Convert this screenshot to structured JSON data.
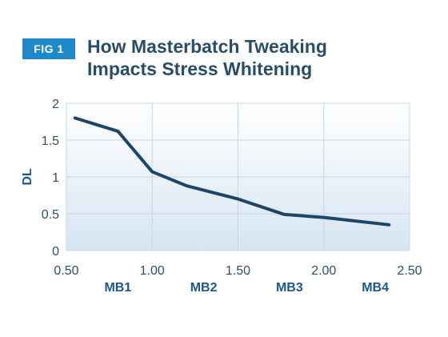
{
  "badge": "FIG 1",
  "title_line1": "How Masterbatch Tweaking",
  "title_line2": "Impacts Stress Whitening",
  "colors": {
    "badge_bg": "#1e88c8",
    "line": "#1f4566",
    "plot_bg_top": "#ffffff",
    "plot_bg_bottom": "#d6e5f3",
    "grid": "#c6d6e6",
    "label_blue": "#1f5684"
  },
  "chart_data": {
    "type": "line",
    "title": "How Masterbatch Tweaking Impacts Stress Whitening",
    "xlabel": "",
    "ylabel": "DL",
    "xlim": [
      0.5,
      2.5
    ],
    "ylim": [
      0,
      2
    ],
    "x_ticks": [
      "0.50",
      "1.00",
      "1.50",
      "2.00",
      "2.50"
    ],
    "y_ticks": [
      "0",
      "0.5",
      "1",
      "1.5",
      "2"
    ],
    "grid": true,
    "series": [
      {
        "x": [
          0.55,
          0.8,
          1.0,
          1.2,
          1.5,
          1.77,
          2.0,
          2.38
        ],
        "y": [
          1.8,
          1.62,
          1.07,
          0.88,
          0.7,
          0.49,
          0.45,
          0.35
        ]
      }
    ],
    "category_labels": [
      {
        "label": "MB1",
        "x": 0.8
      },
      {
        "label": "MB2",
        "x": 1.3
      },
      {
        "label": "MB3",
        "x": 1.8
      },
      {
        "label": "MB4",
        "x": 2.3
      }
    ]
  }
}
